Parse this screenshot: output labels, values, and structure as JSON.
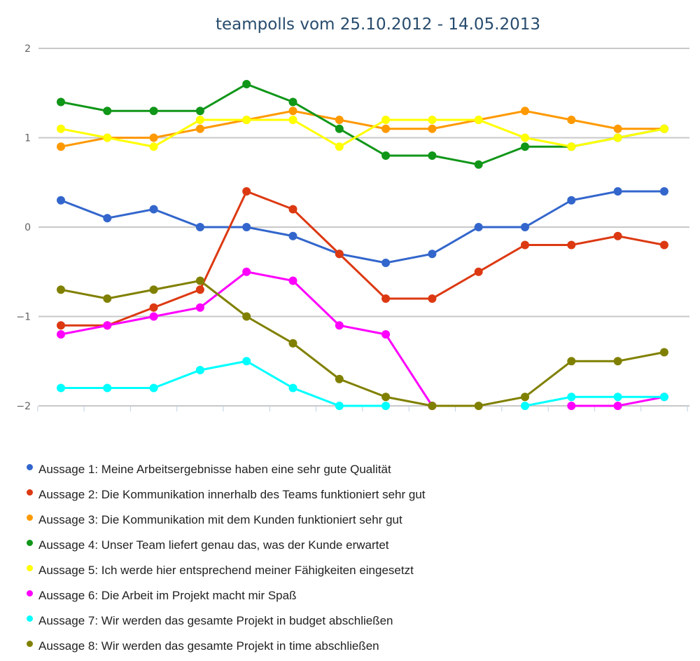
{
  "chart_data": {
    "type": "line",
    "title": "teampolls vom 25.10.2012 - 14.05.2013",
    "ylim": [
      -2,
      2
    ],
    "yticks": [
      "2",
      "1",
      "0",
      "−1",
      "−2"
    ],
    "ytick_values": [
      2,
      1,
      0,
      -1,
      -2
    ],
    "grid": true,
    "legend_position": "bottom",
    "series": [
      {
        "name": "Aussage 1: Meine Arbeitsergebnisse haben eine sehr gute Qualität",
        "color": "#3366cc",
        "values": [
          0.3,
          0.1,
          0.2,
          0,
          0,
          -0.1,
          -0.3,
          -0.4,
          -0.3,
          0,
          0,
          0.3,
          0.4,
          0.4
        ]
      },
      {
        "name": "Aussage 2: Die Kommunikation innerhalb des Teams funktioniert sehr gut",
        "color": "#dc3912",
        "values": [
          -1.1,
          -1.1,
          -0.9,
          -0.7,
          0.4,
          0.2,
          -0.3,
          -0.8,
          -0.8,
          -0.5,
          -0.2,
          -0.2,
          -0.1,
          -0.2
        ]
      },
      {
        "name": "Aussage 3: Die Kommunikation mit dem Kunden funktioniert sehr gut",
        "color": "#ff9900",
        "values": [
          0.9,
          1.0,
          1.0,
          1.1,
          1.2,
          1.3,
          1.2,
          1.1,
          1.1,
          1.2,
          1.3,
          1.2,
          1.1,
          1.1
        ]
      },
      {
        "name": "Aussage 4: Unser Team liefert genau das, was der Kunde erwartet",
        "color": "#109618",
        "values": [
          1.4,
          1.3,
          1.3,
          1.3,
          1.6,
          1.4,
          1.1,
          0.8,
          0.8,
          0.7,
          0.9,
          0.9,
          1.0,
          1.1
        ]
      },
      {
        "name": "Aussage 5: Ich werde hier entsprechend meiner Fähigkeiten eingesetzt",
        "color": "#ffff00",
        "values": [
          1.1,
          1.0,
          0.9,
          1.2,
          1.2,
          1.2,
          0.9,
          1.2,
          1.2,
          1.2,
          1.0,
          0.9,
          1.0,
          1.1
        ]
      },
      {
        "name": "Aussage 6: Die Arbeit im Projekt macht mir Spaß",
        "color": "#ff00ff",
        "values": [
          -1.2,
          -1.1,
          -1.0,
          -0.9,
          -0.5,
          -0.6,
          -1.1,
          -1.2,
          -2.0,
          null,
          null,
          -2.0,
          -2.0,
          -1.9
        ]
      },
      {
        "name": "Aussage 7: Wir werden das gesamte Projekt in budget abschließen",
        "color": "#00ffff",
        "values": [
          -1.8,
          -1.8,
          -1.8,
          -1.6,
          -1.5,
          -1.8,
          -2.0,
          -2.0,
          null,
          null,
          -2.0,
          -1.9,
          -1.9,
          -1.9
        ]
      },
      {
        "name": "Aussage 8: Wir werden das gesamte Projekt in time abschließen",
        "color": "#808000",
        "values": [
          -0.7,
          -0.8,
          -0.7,
          -0.6,
          -1.0,
          -1.3,
          -1.7,
          -1.9,
          -2.0,
          -2.0,
          -1.9,
          -1.5,
          -1.5,
          -1.4
        ]
      }
    ]
  }
}
